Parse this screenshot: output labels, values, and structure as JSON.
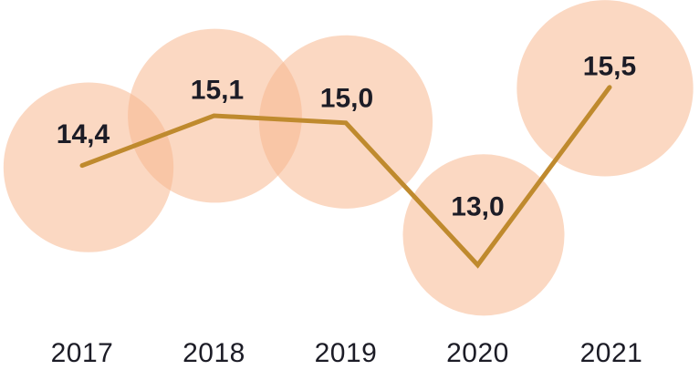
{
  "chart_data": {
    "type": "line",
    "subtype": "line-with-area-proportional-bubbles",
    "categories": [
      "2017",
      "2018",
      "2019",
      "2020",
      "2021"
    ],
    "series": [
      {
        "name": "value",
        "values": [
          14.4,
          15.1,
          15.0,
          13.0,
          15.5
        ]
      }
    ],
    "point_labels": [
      "14,4",
      "15,1",
      "15,0",
      "13,0",
      "15,5"
    ],
    "decimal_separator": ",",
    "title": "",
    "xlabel": "",
    "ylabel": "",
    "legend": false,
    "grid": false,
    "axes_visible": false,
    "value_range_shown": [
      13.0,
      15.5
    ],
    "colors": {
      "background": "#ffffff",
      "bubble_fill": "#f8b890",
      "bubble_opacity": 0.55,
      "line": "#bf8a2e",
      "text": "#1c1c26"
    }
  }
}
